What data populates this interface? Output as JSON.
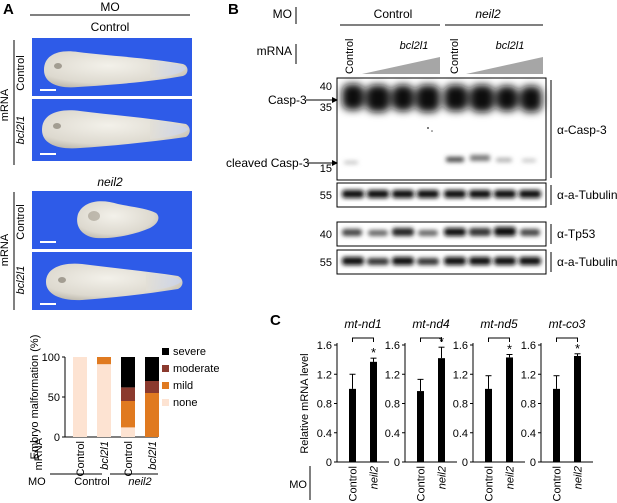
{
  "panelA": {
    "letter": "A",
    "mo_label": "MO",
    "group1": "Control",
    "group2": "neil2",
    "mrna_label": "mRNA",
    "row_control": "Control",
    "row_bcl2l1": "bcl2l1",
    "embryo_bg": "#2e5be8"
  },
  "panelB": {
    "letter": "B",
    "mo_label": "MO",
    "mrna_label": "mRNA",
    "group1": "Control",
    "group2": "neil2",
    "col_control": "Control",
    "col_bcl2l1": "bcl2l1",
    "casp3": "Casp-3",
    "cleaved_casp3": "cleaved Casp-3",
    "ab_casp3": "α-Casp-3",
    "ab_tubulin": "α-a-Tubulin",
    "ab_tp53": "α-Tp53",
    "markers": {
      "m40a": "40",
      "m35": "35",
      "m15": "15",
      "m55a": "55",
      "m40b": "40",
      "m55b": "55"
    }
  },
  "chart_data": [
    {
      "type": "bar",
      "subtype": "stacked-percent",
      "ylabel": "Embryo malformation (%)",
      "ylim": [
        0,
        100
      ],
      "yticks": [
        0,
        50,
        100
      ],
      "categories": [
        "Control",
        "bcl2l1",
        "Control",
        "bcl2l1"
      ],
      "row_label_mrna": "mRNA",
      "row_label_mo": "MO",
      "mo_groups": [
        "Control",
        "neil2"
      ],
      "legend": [
        "severe",
        "moderate",
        "mild",
        "none"
      ],
      "colors": {
        "severe": "#000000",
        "moderate": "#8b3a2e",
        "mild": "#e07a20",
        "none": "#fde3d2"
      },
      "series": [
        {
          "name": "none",
          "values": [
            100,
            91,
            12,
            0
          ]
        },
        {
          "name": "mild",
          "values": [
            0,
            9,
            33,
            55
          ]
        },
        {
          "name": "moderate",
          "values": [
            0,
            0,
            17,
            15
          ]
        },
        {
          "name": "severe",
          "values": [
            0,
            0,
            38,
            30
          ]
        }
      ]
    },
    {
      "type": "bar",
      "title": "mt-nd1",
      "ylabel": "Relative mRNA level",
      "ylim": [
        0,
        1.6
      ],
      "yticks": [
        0,
        0.4,
        0.8,
        1.2,
        1.6
      ],
      "ytick_labels": [
        "0",
        "0.4",
        "0.8",
        "1.2",
        "1.6"
      ],
      "categories": [
        "Control",
        "neil2"
      ],
      "values": [
        1.0,
        1.37
      ],
      "errors": [
        0.2,
        0.05
      ],
      "significance": "*"
    },
    {
      "type": "bar",
      "title": "mt-nd4",
      "ylim": [
        0,
        1.6
      ],
      "yticks": [
        0,
        0.4,
        0.8,
        1.2,
        1.6
      ],
      "ytick_labels": [
        "0",
        "0.4",
        "0.8",
        "1.2",
        "1.6"
      ],
      "categories": [
        "Control",
        "neil2"
      ],
      "values": [
        0.97,
        1.42
      ],
      "errors": [
        0.16,
        0.15
      ],
      "significance": "*"
    },
    {
      "type": "bar",
      "title": "mt-nd5",
      "ylim": [
        0,
        1.6
      ],
      "yticks": [
        0,
        0.4,
        0.8,
        1.2,
        1.6
      ],
      "ytick_labels": [
        "0",
        "0.4",
        "0.8",
        "1.2",
        "1.6"
      ],
      "categories": [
        "Control",
        "neil2"
      ],
      "values": [
        1.0,
        1.43
      ],
      "errors": [
        0.18,
        0.04
      ],
      "significance": "*"
    },
    {
      "type": "bar",
      "title": "mt-co3",
      "ylim": [
        0,
        1.6
      ],
      "yticks": [
        0,
        0.4,
        0.8,
        1.2,
        1.6
      ],
      "ytick_labels": [
        "0",
        "0.4",
        "0.8",
        "1.2",
        "1.6"
      ],
      "categories": [
        "Control",
        "neil2"
      ],
      "values": [
        1.0,
        1.45
      ],
      "errors": [
        0.18,
        0.03
      ],
      "significance": "*"
    }
  ],
  "panelC": {
    "letter": "C",
    "mo_label": "MO"
  }
}
